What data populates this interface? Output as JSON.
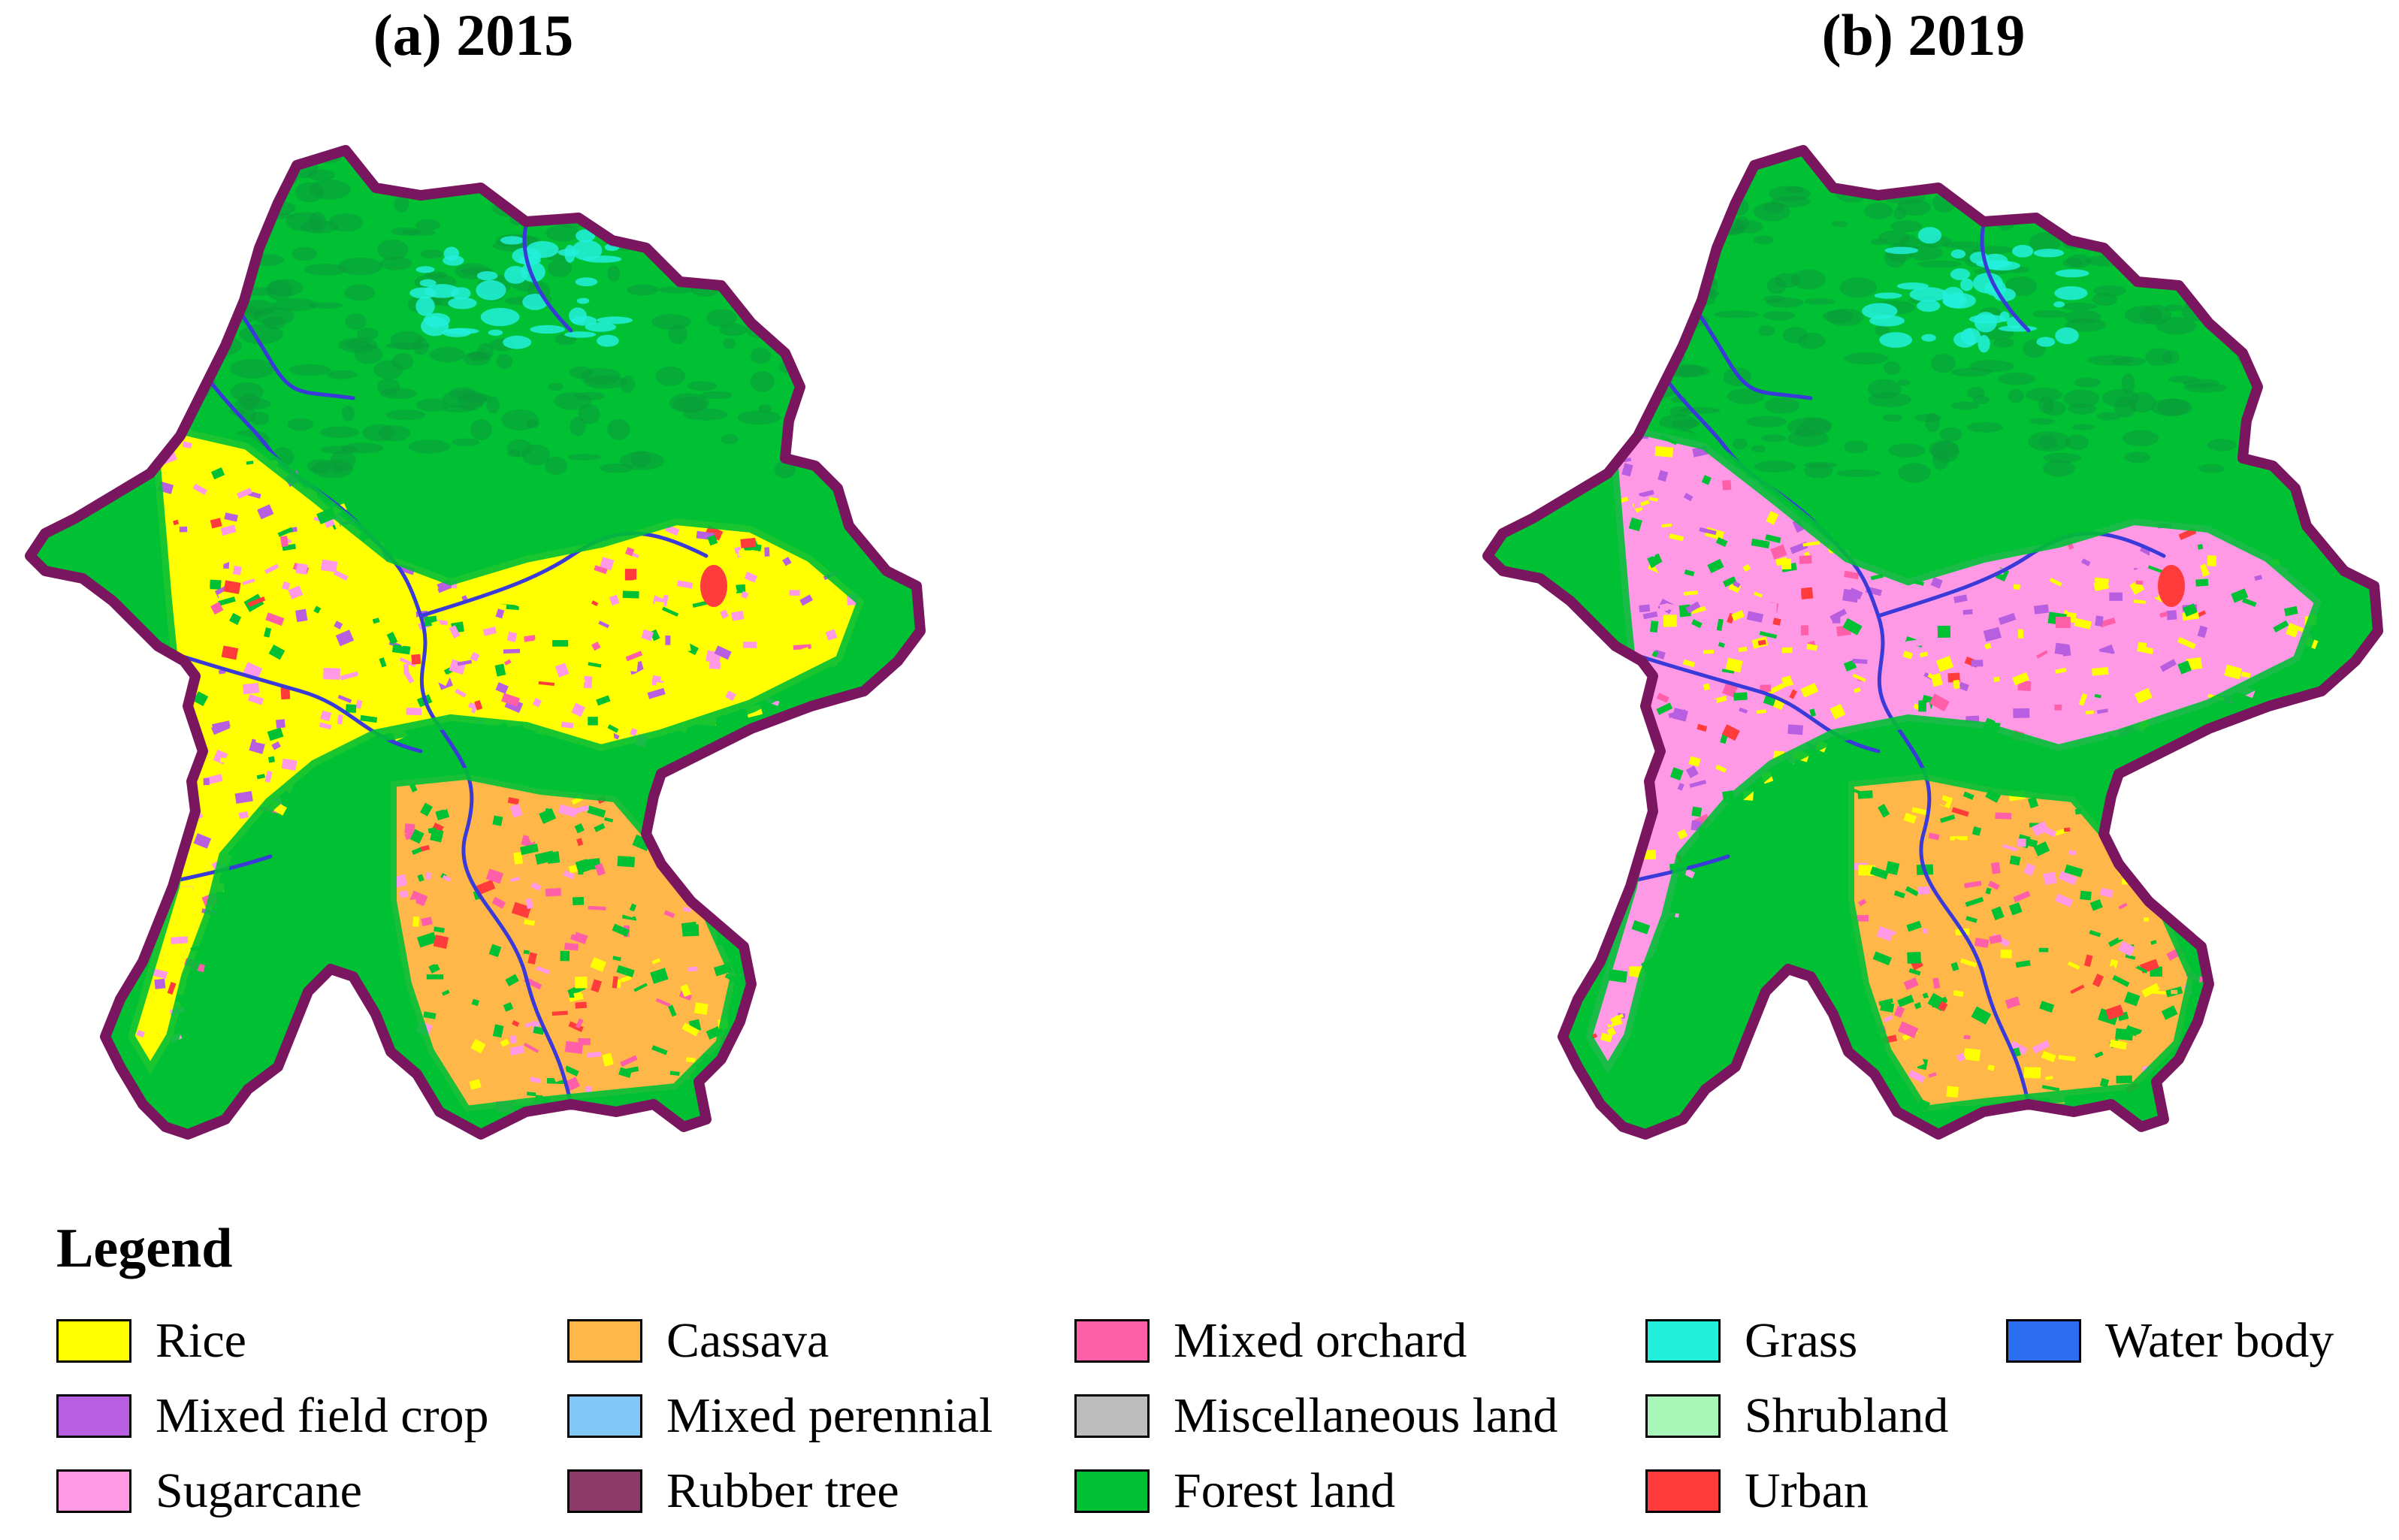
{
  "maps": [
    {
      "title": "(a) 2015"
    },
    {
      "title": "(b) 2019"
    }
  ],
  "legend": {
    "title": "Legend",
    "items": [
      {
        "label": "Rice",
        "color": "#ffff00"
      },
      {
        "label": "Mixed field crop",
        "color": "#b85ee0"
      },
      {
        "label": "Sugarcane",
        "color": "#ff99e6"
      },
      {
        "label": "Cassava",
        "color": "#ffb74a"
      },
      {
        "label": "Mixed perennial",
        "color": "#80c8f5"
      },
      {
        "label": "Rubber tree",
        "color": "#8c3a6a"
      },
      {
        "label": "Mixed orchard",
        "color": "#ff5fa8"
      },
      {
        "label": "Miscellaneous land",
        "color": "#bdbdbd"
      },
      {
        "label": "Forest land",
        "color": "#00c034"
      },
      {
        "label": "Grass",
        "color": "#22f0dc"
      },
      {
        "label": "Shrubland",
        "color": "#a9f7b8"
      },
      {
        "label": "Urban",
        "color": "#ff3b3b"
      },
      {
        "label": "Water body",
        "color": "#2b6ef0"
      }
    ]
  },
  "colors": {
    "boundary": "#7a1560",
    "forest_dark": "#0a9a3a",
    "river": "#3a3ad8"
  }
}
